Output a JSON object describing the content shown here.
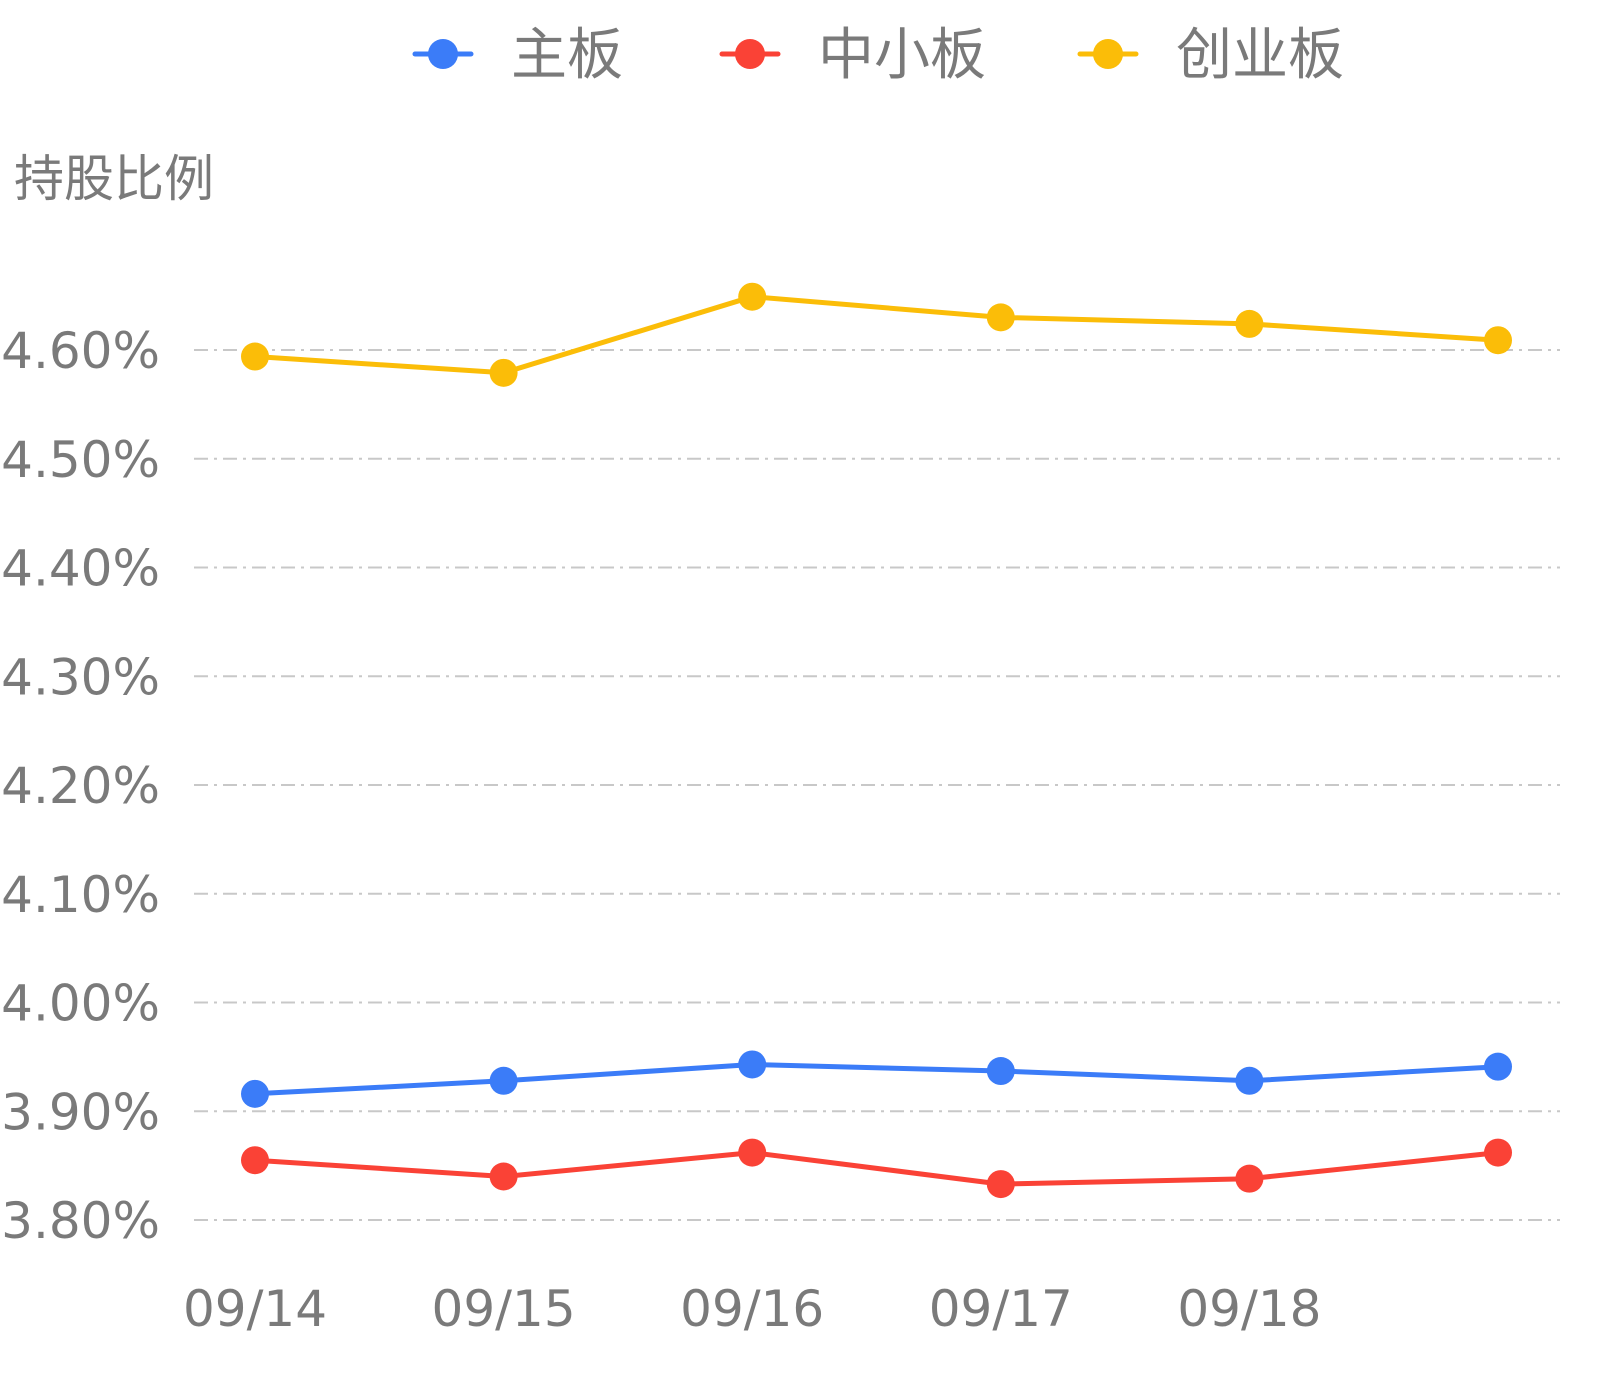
{
  "chart_data": {
    "type": "line",
    "title": "",
    "xlabel": "",
    "ylabel": "持股比例",
    "categories": [
      "09/14",
      "09/15",
      "09/16",
      "09/17",
      "09/18",
      ""
    ],
    "x_tick_labels": [
      "09/14",
      "09/15",
      "09/16",
      "09/17",
      "09/18"
    ],
    "y_ticks": [
      3.8,
      3.9,
      4.0,
      4.1,
      4.2,
      4.3,
      4.4,
      4.5,
      4.6
    ],
    "y_tick_labels": [
      "3.80%",
      "3.90%",
      "4.00%",
      "4.10%",
      "4.20%",
      "4.30%",
      "4.40%",
      "4.50%",
      "4.60%"
    ],
    "ylim": [
      3.8,
      4.6
    ],
    "grid": true,
    "legend_position": "top-center",
    "series": [
      {
        "name": "主板",
        "color": "#3b7cf8",
        "values": [
          3.916,
          3.928,
          3.943,
          3.937,
          3.928,
          3.941
        ]
      },
      {
        "name": "中小板",
        "color": "#fa4236",
        "values": [
          3.855,
          3.84,
          3.862,
          3.833,
          3.838,
          3.862
        ]
      },
      {
        "name": "创业板",
        "color": "#fbbd08",
        "values": [
          4.594,
          4.579,
          4.649,
          4.63,
          4.624,
          4.609
        ]
      }
    ]
  }
}
